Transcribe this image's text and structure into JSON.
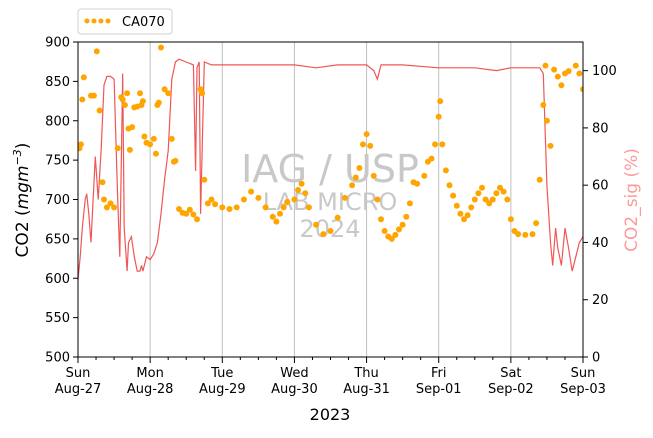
{
  "chart_data": {
    "type": "scatter",
    "xlabel": "2023",
    "ylabel_left": "CO2 (mgm⁻³)",
    "ylabel_left_base": "CO2 (",
    "ylabel_left_unit": "mgm",
    "ylabel_left_exp": "−3",
    "ylabel_left_close": ")",
    "ylabel_right": "CO2_sig (%)",
    "xlim": [
      "2023-08-27",
      "2023-09-03"
    ],
    "ylim_left": [
      500,
      900
    ],
    "ylim_right": [
      0,
      110
    ],
    "x_ticks": [
      {
        "day": "Sun",
        "date": "Aug-27"
      },
      {
        "day": "Mon",
        "date": "Aug-28"
      },
      {
        "day": "Tue",
        "date": "Aug-29"
      },
      {
        "day": "Wed",
        "date": "Aug-30"
      },
      {
        "day": "Thu",
        "date": "Aug-31"
      },
      {
        "day": "Fri",
        "date": "Sep-01"
      },
      {
        "day": "Sat",
        "date": "Sep-02"
      },
      {
        "day": "Sun",
        "date": "Sep-03"
      }
    ],
    "y_ticks_left": [
      500,
      550,
      600,
      650,
      700,
      750,
      800,
      850,
      900
    ],
    "y_ticks_right": [
      0,
      20,
      40,
      60,
      80,
      100
    ],
    "grid": "vertical at day ticks",
    "legend": {
      "placement": "top-left, above plot",
      "entries": [
        "CA070"
      ]
    },
    "watermark": [
      "IAG / USP",
      "LAB MICRO",
      "2024"
    ],
    "colors": {
      "co2_points": "#FFA500",
      "co2_sig_line": "#EE4444",
      "right_axis_label": "#FF9999",
      "grid": "#C0C0C0",
      "watermark": "#C8C8C8"
    },
    "series": [
      {
        "name": "CA070",
        "axis": "left",
        "style": "points",
        "x_unit": "days since Sun Aug-27 00:00",
        "points": [
          [
            0.02,
            765
          ],
          [
            0.04,
            770
          ],
          [
            0.06,
            827
          ],
          [
            0.08,
            855
          ],
          [
            0.18,
            832
          ],
          [
            0.22,
            832
          ],
          [
            0.26,
            888
          ],
          [
            0.3,
            813
          ],
          [
            0.34,
            722
          ],
          [
            0.36,
            700
          ],
          [
            0.4,
            690
          ],
          [
            0.45,
            695
          ],
          [
            0.5,
            690
          ],
          [
            0.55,
            765
          ],
          [
            0.6,
            830
          ],
          [
            0.62,
            827
          ],
          [
            0.65,
            820
          ],
          [
            0.68,
            835
          ],
          [
            0.7,
            790
          ],
          [
            0.72,
            763
          ],
          [
            0.75,
            792
          ],
          [
            0.78,
            817
          ],
          [
            0.82,
            818
          ],
          [
            0.86,
            835
          ],
          [
            0.88,
            820
          ],
          [
            0.9,
            825
          ],
          [
            0.92,
            780
          ],
          [
            0.95,
            772
          ],
          [
            1.0,
            770
          ],
          [
            1.05,
            777
          ],
          [
            1.08,
            758
          ],
          [
            1.1,
            820
          ],
          [
            1.12,
            823
          ],
          [
            1.15,
            893
          ],
          [
            1.2,
            840
          ],
          [
            1.25,
            835
          ],
          [
            1.3,
            777
          ],
          [
            1.33,
            748
          ],
          [
            1.35,
            749
          ],
          [
            1.4,
            688
          ],
          [
            1.45,
            683
          ],
          [
            1.5,
            682
          ],
          [
            1.55,
            687
          ],
          [
            1.6,
            681
          ],
          [
            1.65,
            675
          ],
          [
            1.7,
            840
          ],
          [
            1.72,
            835
          ],
          [
            1.75,
            725
          ],
          [
            1.8,
            695
          ],
          [
            1.85,
            700
          ],
          [
            1.9,
            694
          ],
          [
            2.0,
            690
          ],
          [
            2.1,
            688
          ],
          [
            2.2,
            690
          ],
          [
            2.3,
            700
          ],
          [
            2.4,
            710
          ],
          [
            2.5,
            702
          ],
          [
            2.6,
            690
          ],
          [
            2.7,
            678
          ],
          [
            2.75,
            672
          ],
          [
            2.8,
            682
          ],
          [
            2.85,
            690
          ],
          [
            2.9,
            697
          ],
          [
            3.0,
            700
          ],
          [
            3.05,
            712
          ],
          [
            3.1,
            720
          ],
          [
            3.15,
            708
          ],
          [
            3.2,
            690
          ],
          [
            3.3,
            668
          ],
          [
            3.4,
            656
          ],
          [
            3.5,
            660
          ],
          [
            3.6,
            677
          ],
          [
            3.7,
            702
          ],
          [
            3.8,
            718
          ],
          [
            3.85,
            728
          ],
          [
            3.9,
            740
          ],
          [
            3.95,
            770
          ],
          [
            4.0,
            783
          ],
          [
            4.05,
            768
          ],
          [
            4.1,
            730
          ],
          [
            4.15,
            700
          ],
          [
            4.2,
            675
          ],
          [
            4.25,
            660
          ],
          [
            4.3,
            653
          ],
          [
            4.35,
            650
          ],
          [
            4.4,
            655
          ],
          [
            4.45,
            662
          ],
          [
            4.5,
            668
          ],
          [
            4.55,
            678
          ],
          [
            4.6,
            695
          ],
          [
            4.65,
            722
          ],
          [
            4.7,
            720
          ],
          [
            4.8,
            730
          ],
          [
            4.85,
            748
          ],
          [
            4.9,
            752
          ],
          [
            4.95,
            770
          ],
          [
            5.0,
            805
          ],
          [
            5.02,
            825
          ],
          [
            5.05,
            770
          ],
          [
            5.1,
            737
          ],
          [
            5.15,
            718
          ],
          [
            5.2,
            705
          ],
          [
            5.25,
            692
          ],
          [
            5.3,
            682
          ],
          [
            5.35,
            675
          ],
          [
            5.4,
            680
          ],
          [
            5.45,
            690
          ],
          [
            5.5,
            700
          ],
          [
            5.55,
            708
          ],
          [
            5.6,
            715
          ],
          [
            5.65,
            700
          ],
          [
            5.7,
            695
          ],
          [
            5.75,
            700
          ],
          [
            5.8,
            708
          ],
          [
            5.85,
            715
          ],
          [
            5.9,
            710
          ],
          [
            5.95,
            700
          ],
          [
            6.0,
            675
          ],
          [
            6.05,
            660
          ],
          [
            6.1,
            656
          ],
          [
            6.2,
            655
          ],
          [
            6.3,
            656
          ],
          [
            6.35,
            670
          ],
          [
            6.4,
            725
          ],
          [
            6.45,
            820
          ],
          [
            6.48,
            870
          ],
          [
            6.5,
            800
          ],
          [
            6.55,
            768
          ],
          [
            6.6,
            865
          ],
          [
            6.65,
            856
          ],
          [
            6.7,
            845
          ],
          [
            6.75,
            860
          ],
          [
            6.8,
            863
          ],
          [
            6.9,
            870
          ],
          [
            6.95,
            860
          ],
          [
            7.0,
            840
          ]
        ]
      },
      {
        "name": "CO2_sig",
        "axis": "right",
        "style": "line",
        "x_unit": "days since Sun Aug-27 00:00",
        "points": [
          [
            0.0,
            27
          ],
          [
            0.03,
            35
          ],
          [
            0.06,
            45
          ],
          [
            0.1,
            55
          ],
          [
            0.12,
            57
          ],
          [
            0.15,
            50
          ],
          [
            0.18,
            40
          ],
          [
            0.2,
            50
          ],
          [
            0.24,
            70
          ],
          [
            0.28,
            55
          ],
          [
            0.32,
            72
          ],
          [
            0.36,
            95
          ],
          [
            0.4,
            98
          ],
          [
            0.45,
            98
          ],
          [
            0.5,
            97
          ],
          [
            0.55,
            55
          ],
          [
            0.58,
            35
          ],
          [
            0.62,
            99
          ],
          [
            0.64,
            45
          ],
          [
            0.68,
            30
          ],
          [
            0.7,
            40
          ],
          [
            0.74,
            42
          ],
          [
            0.78,
            35
          ],
          [
            0.82,
            30
          ],
          [
            0.86,
            30
          ],
          [
            0.88,
            32
          ],
          [
            0.9,
            30
          ],
          [
            0.95,
            35
          ],
          [
            1.0,
            34
          ],
          [
            1.05,
            36
          ],
          [
            1.1,
            40
          ],
          [
            1.15,
            50
          ],
          [
            1.2,
            62
          ],
          [
            1.25,
            72
          ],
          [
            1.3,
            97
          ],
          [
            1.35,
            103
          ],
          [
            1.4,
            104
          ],
          [
            1.5,
            103
          ],
          [
            1.6,
            102
          ],
          [
            1.63,
            65
          ],
          [
            1.65,
            101
          ],
          [
            1.68,
            103
          ],
          [
            1.7,
            50
          ],
          [
            1.75,
            103
          ],
          [
            1.85,
            102
          ],
          [
            2.0,
            102
          ],
          [
            2.5,
            102
          ],
          [
            3.0,
            102
          ],
          [
            3.3,
            101
          ],
          [
            3.6,
            102
          ],
          [
            4.0,
            102
          ],
          [
            4.1,
            100
          ],
          [
            4.15,
            97
          ],
          [
            4.2,
            102
          ],
          [
            4.5,
            102
          ],
          [
            5.0,
            101
          ],
          [
            5.5,
            101
          ],
          [
            5.8,
            100
          ],
          [
            6.0,
            101
          ],
          [
            6.2,
            101
          ],
          [
            6.4,
            101
          ],
          [
            6.45,
            99
          ],
          [
            6.5,
            60
          ],
          [
            6.55,
            40
          ],
          [
            6.58,
            32
          ],
          [
            6.62,
            45
          ],
          [
            6.65,
            38
          ],
          [
            6.7,
            32
          ],
          [
            6.75,
            45
          ],
          [
            6.8,
            38
          ],
          [
            6.85,
            30
          ],
          [
            6.9,
            35
          ],
          [
            6.95,
            40
          ],
          [
            7.0,
            42
          ]
        ]
      }
    ]
  }
}
